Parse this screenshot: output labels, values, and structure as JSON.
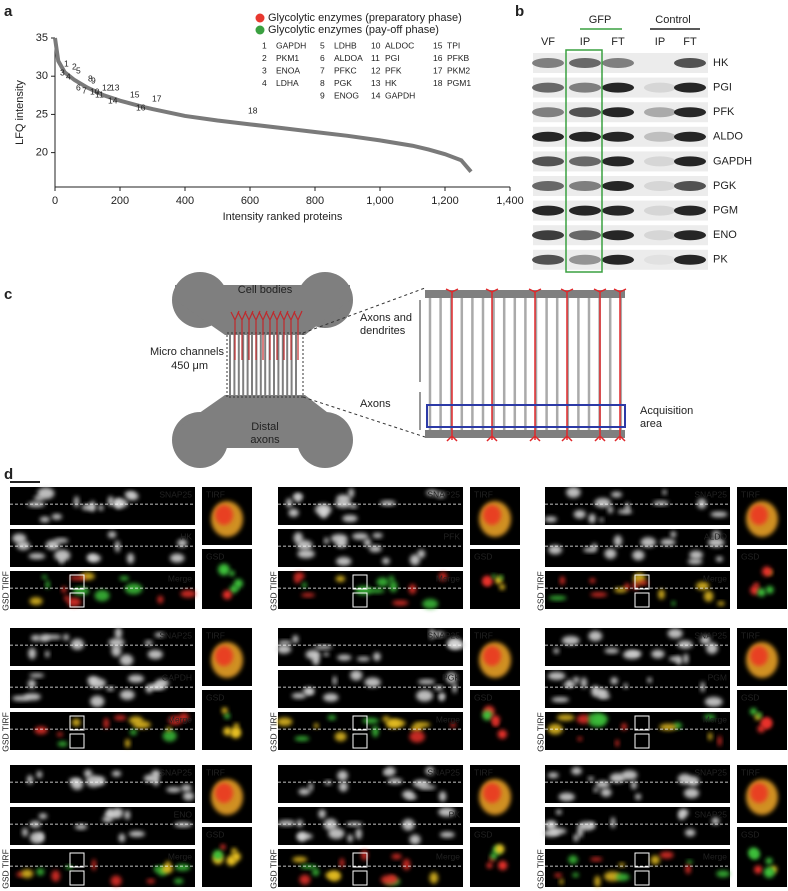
{
  "panel_labels": [
    "a",
    "b",
    "c",
    "d"
  ],
  "chart_data": {
    "type": "line",
    "xlabel": "Intensity ranked proteins",
    "ylabel": "LFQ intensity",
    "xlim": [
      0,
      1400
    ],
    "ylim": [
      15.5,
      35
    ],
    "xticks": [
      0,
      200,
      400,
      600,
      800,
      {
        "value": 1000,
        "label": "1,000"
      },
      {
        "value": 1200,
        "label": "1,200"
      },
      {
        "value": 1400,
        "label": "1,400"
      }
    ],
    "yticks": [
      20,
      25,
      30,
      35
    ],
    "x": [
      0,
      10,
      30,
      60,
      100,
      150,
      200,
      270,
      300,
      400,
      500,
      600,
      700,
      800,
      900,
      1000,
      1100,
      1150,
      1200,
      1250,
      1280
    ],
    "values": [
      35,
      32,
      30.5,
      29.5,
      28.5,
      27.5,
      26.8,
      26,
      25.7,
      24.8,
      24.2,
      23.7,
      23.2,
      22.7,
      22.2,
      21.6,
      20.9,
      20.4,
      19.8,
      19,
      17.5
    ],
    "color": "#7a7a7a",
    "legend": [
      {
        "name": "Glycolytic enzymes (preparatory phase)",
        "color": "#e8382f"
      },
      {
        "name": "Glycolytic enzymes (pay-off phase)",
        "color": "#3aa040"
      }
    ],
    "enzymes": [
      {
        "label": "1",
        "name": "GAPDH",
        "color": "#3aa040"
      },
      {
        "label": "2",
        "name": "PKM1",
        "color": "#3aa040"
      },
      {
        "label": "3",
        "name": "ENOA",
        "color": "#3aa040"
      },
      {
        "label": "4",
        "name": "LDHA",
        "color": "#3aa040"
      },
      {
        "label": "5",
        "name": "LDHB",
        "color": "#3aa040"
      },
      {
        "label": "6",
        "name": "ALDOA",
        "color": "#e8382f"
      },
      {
        "label": "7",
        "name": "PFKC",
        "color": "#e8382f"
      },
      {
        "label": "8",
        "name": "PGK",
        "color": "#3aa040"
      },
      {
        "label": "9",
        "name": "ENOG",
        "color": "#3aa040"
      },
      {
        "label": "10",
        "name": "ALDOC",
        "color": "#e8382f"
      },
      {
        "label": "11",
        "name": "PGI",
        "color": "#e8382f"
      },
      {
        "label": "12",
        "name": "PFK",
        "color": "#e8382f"
      },
      {
        "label": "13",
        "name": "HK",
        "color": "#e8382f"
      },
      {
        "label": "14",
        "name": "GAPDH",
        "color": "#3aa040"
      },
      {
        "label": "15",
        "name": "TPI",
        "color": "#e8382f"
      },
      {
        "label": "16",
        "name": "PFKB",
        "color": "#e8382f"
      },
      {
        "label": "17",
        "name": "PKM2",
        "color": "#3aa040"
      },
      {
        "label": "18",
        "name": "PGM1",
        "color": "#3aa040"
      }
    ]
  },
  "blot": {
    "groups": [
      "GFP",
      "Control"
    ],
    "lanes": [
      "VF",
      "IP",
      "FT",
      "IP",
      "FT"
    ],
    "proteins": [
      "HK",
      "PGI",
      "PFK",
      "ALDO",
      "GAPDH",
      "PGK",
      "PGM",
      "ENO",
      "PK"
    ]
  },
  "diagram": {
    "cell_bodies": "Cell bodies",
    "micro_channels": "Micro channels",
    "length": "450 μm",
    "distal_axons": "Distal",
    "distal_axons2": "axons",
    "axons_dendrites": "Axons and",
    "axons_dendrites2": "dendrites",
    "axons": "Axons",
    "acquisition": "Acquisition",
    "acquisition2": "area"
  },
  "microscopy": {
    "side": "GSD TIRF",
    "merge": "Merge",
    "tirf": "TIRF",
    "gsd": "GSD",
    "panels": [
      {
        "top": "SNAP25",
        "middle": "HK"
      },
      {
        "top": "SNAP25",
        "middle": "PFK"
      },
      {
        "top": "SNAP25",
        "middle": "ALDO"
      },
      {
        "top": "SNAP25",
        "middle": "GAPDH"
      },
      {
        "top": "SNAP25",
        "middle": "PGK"
      },
      {
        "top": "SNAP25",
        "middle": "PGM"
      },
      {
        "top": "SNAP25",
        "middle": "ENO"
      },
      {
        "top": "SNAP25",
        "middle": "PK"
      },
      {
        "top": "SNAP25",
        "middle": "SNAP25"
      }
    ]
  }
}
